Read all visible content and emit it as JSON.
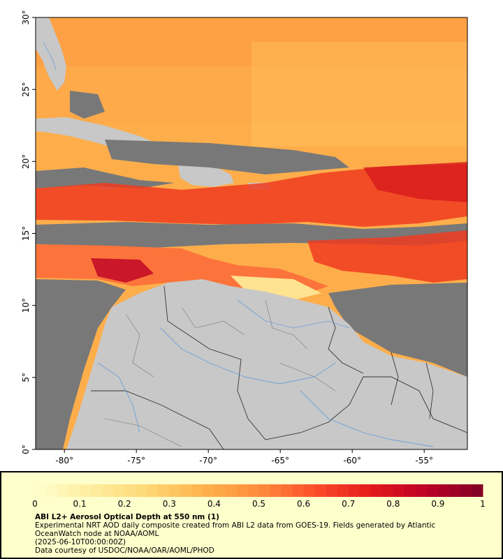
{
  "map": {
    "x_axis": {
      "range": [
        -82,
        -52
      ],
      "ticks": [
        -80,
        -75,
        -70,
        -65,
        -60,
        -55
      ],
      "labels": [
        "-80°",
        "-75°",
        "-70°",
        "-65°",
        "-60°",
        "-55°"
      ]
    },
    "y_axis": {
      "range": [
        0,
        30
      ],
      "ticks": [
        0,
        5,
        10,
        15,
        20,
        25,
        30
      ],
      "labels": [
        "0°",
        "5°",
        "10°",
        "15°",
        "20°",
        "25°",
        "30°"
      ]
    },
    "colors": {
      "no_data": "#787878",
      "land": "#c8c8c8",
      "border": "#333333",
      "river": "#6aa0d8"
    }
  },
  "legend": {
    "ticks": [
      0,
      0.1,
      0.2,
      0.3,
      0.4,
      0.5,
      0.6,
      0.7,
      0.8,
      0.9,
      1
    ],
    "tick_labels": [
      "0",
      "0.1",
      "0.2",
      "0.3",
      "0.4",
      "0.5",
      "0.6",
      "0.7",
      "0.8",
      "0.9",
      "1"
    ],
    "colormap": [
      "#ffffcc",
      "#ffeda0",
      "#fed976",
      "#feb24c",
      "#fd8d3c",
      "#fc4e2a",
      "#e31a1c",
      "#bd0026",
      "#800026"
    ]
  },
  "caption": {
    "title": "ABI L2+ Aerosol Optical Depth at 550 nm (1)",
    "line1": "Experimental NRT AOD daily composite created from ABI L2 data from GOES-19. Fields generated by Atlantic",
    "line2": "OceanWatch node at NOAA/AOML",
    "line3": "(2025-06-10T00:00:00Z)",
    "line4": "Data courtesy of USDOC/NOAA/OAR/AOML/PHOD"
  }
}
